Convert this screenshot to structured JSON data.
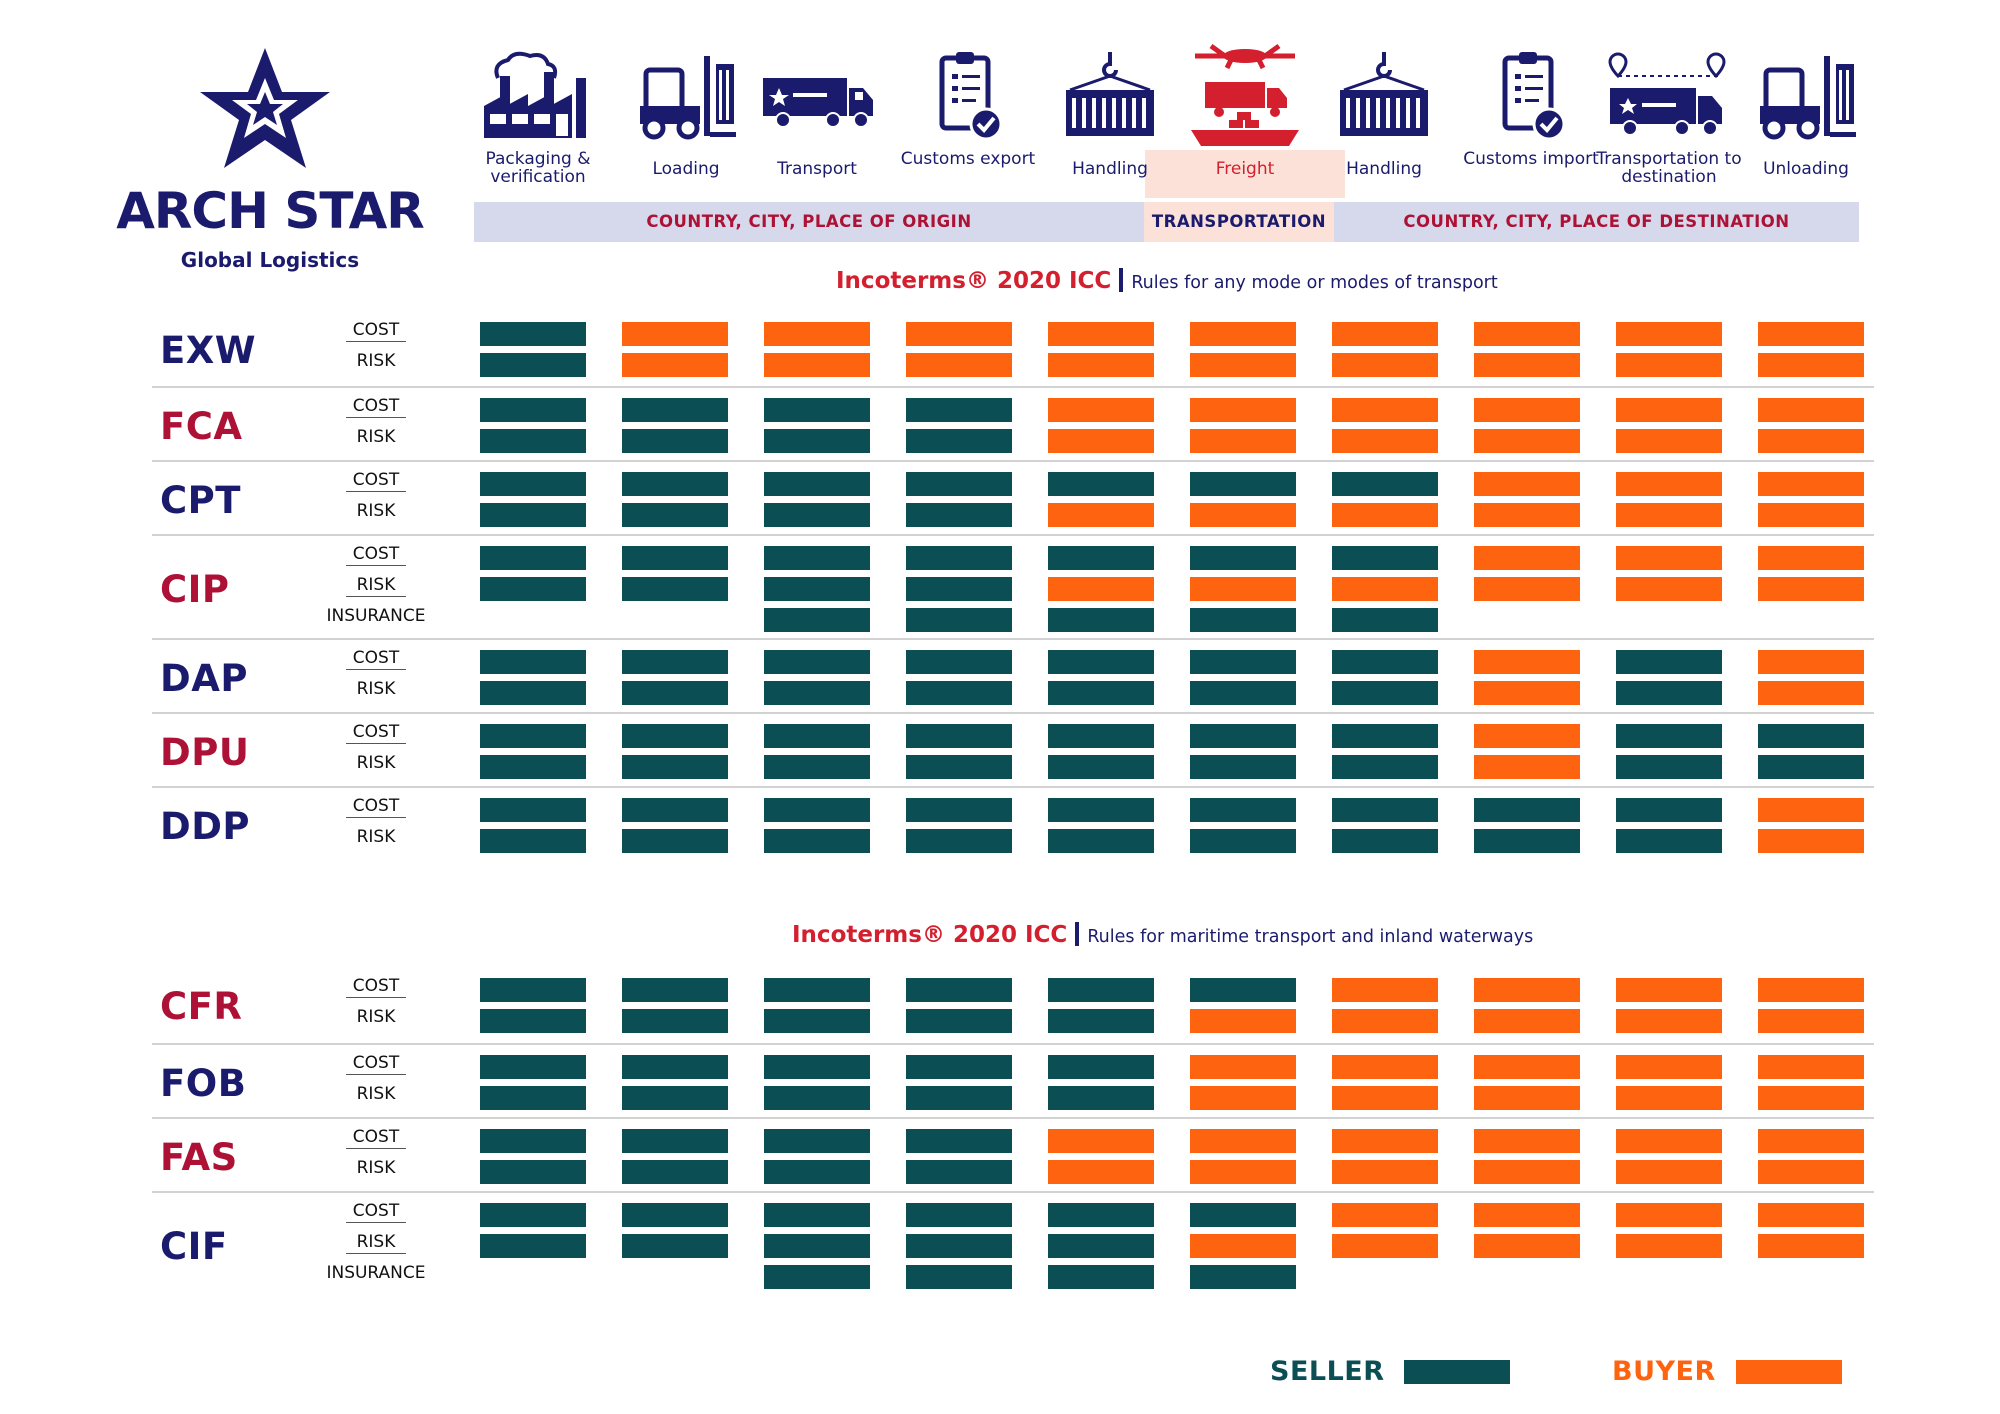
{
  "brand": {
    "name": "ARCH STAR",
    "tagline": "Global Logistics",
    "logo": "arch-star-logo",
    "colors": {
      "navy": "#1b1b6e",
      "red": "#d31f2e",
      "seller": "#0b4f55",
      "buyer": "#fe6310"
    }
  },
  "steps": [
    {
      "label": "Packaging & verification",
      "icon": "factory-icon"
    },
    {
      "label": "Loading",
      "icon": "forklift-icon"
    },
    {
      "label": "Transport",
      "icon": "truck-icon"
    },
    {
      "label": "Customs export",
      "icon": "clipboard-check-icon"
    },
    {
      "label": "Handling",
      "icon": "crane-container-icon"
    },
    {
      "label": "Freight",
      "icon": "plane-truck-ship-icon"
    },
    {
      "label": "Handling",
      "icon": "crane-container-icon"
    },
    {
      "label": "Customs import",
      "icon": "clipboard-check-icon"
    },
    {
      "label": "Transportation to destination",
      "icon": "truck-route-icon"
    },
    {
      "label": "Unloading",
      "icon": "forklift-icon"
    }
  ],
  "bands": {
    "origin": "COUNTRY, CITY, PLACE OF ORIGIN",
    "transport": "TRANSPORTATION",
    "destination": "COUNTRY, CITY, PLACE OF DESTINATION"
  },
  "sections": [
    {
      "title_brand": "Incoterms® 2020 ICC",
      "title_desc": "Rules for any mode or modes of transport",
      "terms": [
        {
          "code": "EXW",
          "color": "navy",
          "rows": [
            {
              "label": "COST",
              "cells": [
                "S",
                "B",
                "B",
                "B",
                "B",
                "B",
                "B",
                "B",
                "B",
                "B"
              ]
            },
            {
              "label": "RISK",
              "cells": [
                "S",
                "B",
                "B",
                "B",
                "B",
                "B",
                "B",
                "B",
                "B",
                "B"
              ]
            }
          ]
        },
        {
          "code": "FCA",
          "color": "red",
          "rows": [
            {
              "label": "COST",
              "cells": [
                "S",
                "S",
                "S",
                "S",
                "B",
                "B",
                "B",
                "B",
                "B",
                "B"
              ]
            },
            {
              "label": "RISK",
              "cells": [
                "S",
                "S",
                "S",
                "S",
                "B",
                "B",
                "B",
                "B",
                "B",
                "B"
              ]
            }
          ]
        },
        {
          "code": "CPT",
          "color": "navy",
          "rows": [
            {
              "label": "COST",
              "cells": [
                "S",
                "S",
                "S",
                "S",
                "S",
                "S",
                "S",
                "B",
                "B",
                "B"
              ]
            },
            {
              "label": "RISK",
              "cells": [
                "S",
                "S",
                "S",
                "S",
                "B",
                "B",
                "B",
                "B",
                "B",
                "B"
              ]
            }
          ]
        },
        {
          "code": "CIP",
          "color": "red",
          "rows": [
            {
              "label": "COST",
              "cells": [
                "S",
                "S",
                "S",
                "S",
                "S",
                "S",
                "S",
                "B",
                "B",
                "B"
              ]
            },
            {
              "label": "RISK",
              "cells": [
                "S",
                "S",
                "S",
                "S",
                "B",
                "B",
                "B",
                "B",
                "B",
                "B"
              ]
            },
            {
              "label": "INSURANCE",
              "cells": [
                "",
                "",
                "S",
                "S",
                "S",
                "S",
                "S",
                "",
                "",
                ""
              ]
            }
          ]
        },
        {
          "code": "DAP",
          "color": "navy",
          "rows": [
            {
              "label": "COST",
              "cells": [
                "S",
                "S",
                "S",
                "S",
                "S",
                "S",
                "S",
                "B",
                "S",
                "B"
              ]
            },
            {
              "label": "RISK",
              "cells": [
                "S",
                "S",
                "S",
                "S",
                "S",
                "S",
                "S",
                "B",
                "S",
                "B"
              ]
            }
          ]
        },
        {
          "code": "DPU",
          "color": "red",
          "rows": [
            {
              "label": "COST",
              "cells": [
                "S",
                "S",
                "S",
                "S",
                "S",
                "S",
                "S",
                "B",
                "S",
                "S"
              ]
            },
            {
              "label": "RISK",
              "cells": [
                "S",
                "S",
                "S",
                "S",
                "S",
                "S",
                "S",
                "B",
                "S",
                "S"
              ]
            }
          ]
        },
        {
          "code": "DDP",
          "color": "navy",
          "rows": [
            {
              "label": "COST",
              "cells": [
                "S",
                "S",
                "S",
                "S",
                "S",
                "S",
                "S",
                "S",
                "S",
                "B"
              ]
            },
            {
              "label": "RISK",
              "cells": [
                "S",
                "S",
                "S",
                "S",
                "S",
                "S",
                "S",
                "S",
                "S",
                "B"
              ]
            }
          ]
        }
      ]
    },
    {
      "title_brand": "Incoterms® 2020 ICC",
      "title_desc": "Rules for maritime transport and inland waterways",
      "terms": [
        {
          "code": "CFR",
          "color": "red",
          "rows": [
            {
              "label": "COST",
              "cells": [
                "S",
                "S",
                "S",
                "S",
                "S",
                "S",
                "B",
                "B",
                "B",
                "B"
              ]
            },
            {
              "label": "RISK",
              "cells": [
                "S",
                "S",
                "S",
                "S",
                "S",
                "B",
                "B",
                "B",
                "B",
                "B"
              ]
            }
          ]
        },
        {
          "code": "FOB",
          "color": "navy",
          "rows": [
            {
              "label": "COST",
              "cells": [
                "S",
                "S",
                "S",
                "S",
                "S",
                "B",
                "B",
                "B",
                "B",
                "B"
              ]
            },
            {
              "label": "RISK",
              "cells": [
                "S",
                "S",
                "S",
                "S",
                "S",
                "B",
                "B",
                "B",
                "B",
                "B"
              ]
            }
          ]
        },
        {
          "code": "FAS",
          "color": "red",
          "rows": [
            {
              "label": "COST",
              "cells": [
                "S",
                "S",
                "S",
                "S",
                "B",
                "B",
                "B",
                "B",
                "B",
                "B"
              ]
            },
            {
              "label": "RISK",
              "cells": [
                "S",
                "S",
                "S",
                "S",
                "B",
                "B",
                "B",
                "B",
                "B",
                "B"
              ]
            }
          ]
        },
        {
          "code": "CIF",
          "color": "navy",
          "rows": [
            {
              "label": "COST",
              "cells": [
                "S",
                "S",
                "S",
                "S",
                "S",
                "S",
                "B",
                "B",
                "B",
                "B"
              ]
            },
            {
              "label": "RISK",
              "cells": [
                "S",
                "S",
                "S",
                "S",
                "S",
                "B",
                "B",
                "B",
                "B",
                "B"
              ]
            },
            {
              "label": "INSURANCE",
              "cells": [
                "",
                "",
                "S",
                "S",
                "S",
                "S",
                "",
                "",
                "",
                ""
              ]
            }
          ]
        }
      ]
    }
  ],
  "legend": {
    "seller": "SELLER",
    "buyer": "BUYER"
  }
}
